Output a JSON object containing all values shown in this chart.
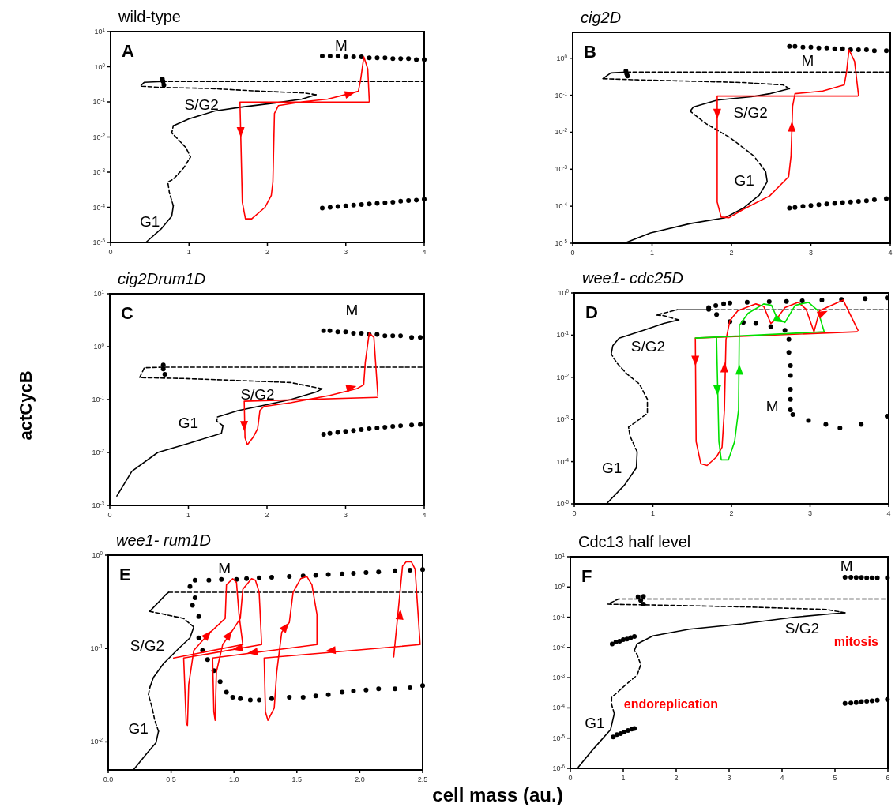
{
  "chart_data": [
    {
      "type": "line",
      "title": "wild-type",
      "log": true,
      "marker": "none",
      "xlim": [
        0,
        4
      ],
      "ylim": [
        1e-05,
        10
      ],
      "xticks": [
        0,
        1,
        2,
        3,
        4
      ],
      "yticks": [
        {
          "value": 1e-05,
          "label": "10$^{-5}$"
        },
        {
          "value": 0.0001,
          "label": "10$^{-4}$"
        },
        {
          "value": 0.001,
          "label": "10$^{-3}$"
        },
        {
          "value": 0.01,
          "label": "10$^{-2}$"
        },
        {
          "value": 0.1,
          "label": "10$^{-1}$"
        },
        {
          "value": 1,
          "label": "10$^{0}$"
        },
        {
          "value": 10,
          "label": "10$^{1}$"
        }
      ],
      "annotations": [
        "A",
        "G1",
        "S/G2",
        "M"
      ],
      "series": [
        {
          "line_style": "solid",
          "color": "#000000",
          "x": [
            0.45,
            0.65,
            0.78,
            0.8
          ],
          "values": [
            1e-05,
            2.5e-05,
            5.6e-05,
            0.00011
          ]
        },
        {
          "line_style": "dashed",
          "color": "#000000",
          "x": [
            0.8,
            0.75,
            0.73,
            0.8,
            0.93,
            1.02,
            0.96,
            0.85,
            0.78,
            0.8
          ],
          "values": [
            0.00011,
            0.00026,
            0.00052,
            0.00063,
            0.0013,
            0.0027,
            0.005,
            0.0091,
            0.013,
            0.021
          ]
        },
        {
          "line_style": "solid",
          "color": "#000000",
          "x": [
            0.8,
            1.0,
            1.33,
            1.67,
            2.1,
            2.44,
            2.62
          ],
          "values": [
            0.021,
            0.033,
            0.055,
            0.071,
            0.093,
            0.12,
            0.16
          ]
        },
        {
          "line_style": "dashed",
          "color": "#000000",
          "x": [
            2.62,
            2.47,
            1.94,
            1.27,
            0.6,
            0.38,
            0.43
          ],
          "values": [
            0.16,
            0.18,
            0.2,
            0.24,
            0.26,
            0.28,
            0.36
          ]
        },
        {
          "line_style": "solid",
          "color": "#000000",
          "x": [
            0.43,
            0.66
          ],
          "values": [
            0.36,
            0.38
          ]
        },
        {
          "line_style": "dashed",
          "color": "#000000",
          "x": [
            0.66,
            4
          ],
          "values": [
            0.38,
            0.38
          ]
        },
        {
          "type": "scatter",
          "marker": "circle",
          "color": "#000000",
          "x": [
            0.66,
            0.67,
            0.68,
            2.7,
            2.8,
            2.9,
            3.0,
            3.1,
            3.2,
            3.3,
            3.4,
            3.5,
            3.6,
            3.7,
            3.8,
            3.9,
            4.0
          ],
          "values": [
            0.45,
            0.38,
            0.3,
            2.0,
            2.0,
            2.0,
            1.9,
            1.9,
            1.9,
            1.8,
            1.8,
            1.8,
            1.7,
            1.7,
            1.7,
            1.6,
            1.6
          ]
        },
        {
          "type": "scatter",
          "marker": "circle",
          "color": "#000000",
          "x": [
            2.7,
            2.8,
            2.9,
            3.0,
            3.1,
            3.2,
            3.3,
            3.4,
            3.5,
            3.6,
            3.7,
            3.8,
            3.9,
            4.0
          ],
          "values": [
            9.5e-05,
            0.0001,
            0.000105,
            0.00011,
            0.000115,
            0.00012,
            0.000125,
            0.00013,
            0.000135,
            0.00014,
            0.00015,
            0.000155,
            0.00016,
            0.00017
          ]
        },
        {
          "line_style": "solid",
          "color": "#ff0000",
          "x": [
            3.29,
            1.65,
            1.68,
            1.72,
            1.8,
            1.97,
            2.05,
            2.07,
            2.09,
            2.14,
            2.44,
            2.77,
            3.08,
            3.16,
            3.19,
            3.23,
            3.28,
            3.3
          ],
          "values": [
            0.098,
            0.098,
            0.00014,
            4.7e-05,
            4.7e-05,
            0.0001,
            0.00022,
            0.00052,
            0.047,
            0.078,
            0.1,
            0.12,
            0.18,
            0.2,
            0.44,
            1.9,
            0.87,
            0.1
          ]
        },
        {
          "type": "scatter",
          "marker": "triangle",
          "color": "#ff0000",
          "x": [
            1.66,
            3.05
          ],
          "values": [
            0.014,
            0.17
          ]
        }
      ]
    },
    {
      "type": "line",
      "title": "cig2D",
      "log": true,
      "marker": "none",
      "xlim": [
        0,
        4
      ],
      "ylim": [
        1e-05,
        5
      ],
      "xticks": [
        0,
        1,
        2,
        3,
        4
      ],
      "yticks": [
        {
          "value": 1e-05,
          "label": "10$^{-5}$"
        },
        {
          "value": 0.0001,
          "label": "10$^{-4}$"
        },
        {
          "value": 0.001,
          "label": "10$^{-3}$"
        },
        {
          "value": 0.01,
          "label": "10$^{-2}$"
        },
        {
          "value": 0.1,
          "label": "10$^{-1}$"
        },
        {
          "value": 1,
          "label": "10$^{0}$"
        }
      ],
      "annotations": [
        "B",
        "M",
        "S/G2",
        "G1"
      ],
      "series": [
        {
          "line_style": "solid",
          "color": "#000000",
          "x": [
            0.65,
            0.98,
            1.48,
            1.92,
            2.15,
            2.35,
            2.45,
            2.43
          ],
          "values": [
            1e-05,
            1.9e-05,
            3.4e-05,
            4.9e-05,
            8.9e-05,
            0.0002,
            0.00046,
            0.00087
          ]
        },
        {
          "line_style": "dashed",
          "color": "#000000",
          "x": [
            2.43,
            2.28,
            1.98,
            1.68,
            1.48
          ],
          "values": [
            0.00087,
            0.0023,
            0.0072,
            0.017,
            0.037
          ]
        },
        {
          "line_style": "solid",
          "color": "#000000",
          "x": [
            1.48,
            1.52,
            1.82,
            2.25,
            2.48,
            2.73
          ],
          "values": [
            0.037,
            0.048,
            0.074,
            0.091,
            0.11,
            0.15
          ]
        },
        {
          "line_style": "dashed",
          "color": "#000000",
          "x": [
            2.73,
            2.65,
            2.15,
            1.48,
            0.82,
            0.38
          ],
          "values": [
            0.15,
            0.19,
            0.22,
            0.24,
            0.26,
            0.28
          ]
        },
        {
          "line_style": "solid",
          "color": "#000000",
          "x": [
            0.38,
            0.48,
            0.68
          ],
          "values": [
            0.28,
            0.4,
            0.42
          ]
        },
        {
          "line_style": "dashed",
          "color": "#000000",
          "x": [
            0.68,
            4
          ],
          "values": [
            0.42,
            0.42
          ]
        },
        {
          "type": "scatter",
          "marker": "circle",
          "color": "#000000",
          "x": [
            0.67,
            0.68,
            0.69,
            2.73,
            2.8,
            2.9,
            3.0,
            3.1,
            3.2,
            3.3,
            3.4,
            3.5,
            3.6,
            3.7,
            3.8,
            3.95
          ],
          "values": [
            0.45,
            0.38,
            0.33,
            2.1,
            2.1,
            2.0,
            2.0,
            1.9,
            1.9,
            1.8,
            1.8,
            1.7,
            1.7,
            1.7,
            1.6,
            1.6
          ]
        },
        {
          "type": "scatter",
          "marker": "circle",
          "color": "#000000",
          "x": [
            2.73,
            2.8,
            2.9,
            3.0,
            3.1,
            3.2,
            3.3,
            3.4,
            3.5,
            3.6,
            3.7,
            3.8,
            3.95
          ],
          "values": [
            8.9e-05,
            9.3e-05,
            0.0001,
            0.000105,
            0.00011,
            0.000115,
            0.00012,
            0.000125,
            0.00013,
            0.000135,
            0.00014,
            0.00015,
            0.00016
          ]
        },
        {
          "line_style": "solid",
          "color": "#ff0000",
          "x": [
            3.59,
            1.82,
            1.82,
            1.87,
            1.97,
            2.15,
            2.48,
            2.72,
            2.75,
            2.77,
            2.8,
            3.15,
            3.42,
            3.45,
            3.48,
            3.55,
            3.6
          ],
          "values": [
            0.095,
            0.095,
            0.00013,
            5.1e-05,
            4.9e-05,
            8.3e-05,
            0.00019,
            0.00063,
            0.0023,
            0.051,
            0.11,
            0.13,
            0.19,
            0.43,
            1.7,
            0.83,
            0.1
          ]
        },
        {
          "type": "scatter",
          "marker": "triangle",
          "color": "#ff0000",
          "x": [
            1.82,
            2.76
          ],
          "values": [
            0.032,
            0.014
          ]
        }
      ]
    },
    {
      "type": "line",
      "title": "cig2Drum1D",
      "ylabel": "actCycB",
      "log": true,
      "marker": "none",
      "xlim": [
        0,
        4
      ],
      "ylim": [
        0.001,
        10
      ],
      "xticks": [
        0,
        1,
        2,
        3,
        4
      ],
      "yticks": [
        {
          "value": 0.001,
          "label": "10$^{-3}$"
        },
        {
          "value": 0.01,
          "label": "10$^{-2}$"
        },
        {
          "value": 0.1,
          "label": "10$^{-1}$"
        },
        {
          "value": 1,
          "label": "10$^{0}$"
        },
        {
          "value": 10,
          "label": "10$^{1}$"
        }
      ],
      "annotations": [
        "C",
        "M",
        "S/G2",
        "G1"
      ],
      "series": [
        {
          "line_style": "solid",
          "color": "#000000",
          "x": [
            0.09,
            0.28,
            0.61,
            1.01,
            1.42,
            1.44
          ],
          "values": [
            0.0015,
            0.0044,
            0.01,
            0.015,
            0.023,
            0.032
          ]
        },
        {
          "line_style": "dashed",
          "color": "#000000",
          "x": [
            1.44,
            1.36,
            1.37
          ],
          "values": [
            0.032,
            0.039,
            0.047
          ]
        },
        {
          "line_style": "solid",
          "color": "#000000",
          "x": [
            1.37,
            1.63,
            1.96,
            2.3,
            2.63,
            2.7
          ],
          "values": [
            0.047,
            0.062,
            0.078,
            0.1,
            0.14,
            0.16
          ]
        },
        {
          "line_style": "dashed",
          "color": "#000000",
          "x": [
            2.7,
            2.3,
            1.62,
            0.95,
            0.38,
            0.44,
            0.68,
            4
          ],
          "values": [
            0.16,
            0.21,
            0.23,
            0.25,
            0.26,
            0.4,
            0.41,
            0.41
          ]
        },
        {
          "type": "scatter",
          "marker": "circle",
          "color": "#000000",
          "x": [
            0.68,
            0.68,
            0.7,
            2.72,
            2.8,
            2.9,
            3.0,
            3.1,
            3.2,
            3.3,
            3.4,
            3.5,
            3.6,
            3.7,
            3.84,
            3.95
          ],
          "values": [
            0.45,
            0.38,
            0.3,
            2.0,
            2.0,
            1.9,
            1.9,
            1.8,
            1.8,
            1.7,
            1.7,
            1.6,
            1.6,
            1.6,
            1.5,
            1.5
          ]
        },
        {
          "type": "scatter",
          "marker": "circle",
          "color": "#000000",
          "x": [
            2.72,
            2.8,
            2.9,
            3.0,
            3.1,
            3.2,
            3.3,
            3.4,
            3.5,
            3.6,
            3.7,
            3.84,
            3.95
          ],
          "values": [
            0.022,
            0.023,
            0.024,
            0.025,
            0.026,
            0.027,
            0.028,
            0.029,
            0.03,
            0.031,
            0.032,
            0.033,
            0.034
          ]
        },
        {
          "line_style": "solid",
          "color": "#ff0000",
          "x": [
            3.4,
            1.71,
            1.72,
            1.75,
            1.82,
            1.88,
            1.91,
            1.96,
            2.3,
            2.8,
            3.14,
            3.23,
            3.25,
            3.3,
            3.36,
            3.41
          ],
          "values": [
            0.11,
            0.093,
            0.019,
            0.014,
            0.019,
            0.028,
            0.062,
            0.074,
            0.087,
            0.12,
            0.16,
            0.19,
            0.5,
            1.8,
            1.5,
            0.12
          ]
        },
        {
          "type": "scatter",
          "marker": "triangle",
          "color": "#ff0000",
          "x": [
            1.71,
            3.07
          ],
          "values": [
            0.032,
            0.17
          ]
        }
      ]
    },
    {
      "type": "line",
      "title": "wee1- cdc25D",
      "log": true,
      "marker": "none",
      "xlim": [
        0,
        4
      ],
      "ylim": [
        1e-05,
        1
      ],
      "xticks": [
        0,
        1,
        2,
        3,
        4
      ],
      "yticks": [
        {
          "value": 1e-05,
          "label": "10$^{-5}$"
        },
        {
          "value": 0.0001,
          "label": "10$^{-4}$"
        },
        {
          "value": 0.001,
          "label": "10$^{-3}$"
        },
        {
          "value": 0.01,
          "label": "10$^{-2}$"
        },
        {
          "value": 0.1,
          "label": "10$^{-1}$"
        },
        {
          "value": 1,
          "label": "10$^{0}$"
        }
      ],
      "annotations": [
        "D",
        "S/G2",
        "M",
        "G1"
      ],
      "series": [
        {
          "line_style": "solid",
          "color": "#000000",
          "x": [
            0.41,
            0.64,
            0.79,
            0.8
          ],
          "values": [
            1e-05,
            2.8e-05,
            7.2e-05,
            0.00017
          ]
        },
        {
          "line_style": "dashed",
          "color": "#000000",
          "x": [
            0.8,
            0.71,
            0.69,
            0.81,
            0.93,
            0.93,
            0.83,
            0.67,
            0.54,
            0.47
          ],
          "values": [
            0.00017,
            0.0004,
            0.00066,
            0.00095,
            0.0014,
            0.003,
            0.0069,
            0.012,
            0.022,
            0.036
          ]
        },
        {
          "line_style": "solid",
          "color": "#000000",
          "x": [
            0.47,
            0.49,
            0.57,
            0.88,
            1.14,
            1.33
          ],
          "values": [
            0.036,
            0.056,
            0.085,
            0.13,
            0.19,
            0.23
          ]
        },
        {
          "line_style": "dashed",
          "color": "#000000",
          "x": [
            1.33,
            1.14,
            1.04,
            1.31
          ],
          "values": [
            0.23,
            0.29,
            0.3,
            0.4
          ]
        },
        {
          "line_style": "solid",
          "color": "#000000",
          "x": [
            1.31,
            1.71
          ],
          "values": [
            0.4,
            0.4
          ]
        },
        {
          "line_style": "dashed",
          "color": "#000000",
          "x": [
            1.71,
            4
          ],
          "values": [
            0.4,
            0.4
          ]
        },
        {
          "type": "scatter",
          "marker": "circle",
          "color": "#000000",
          "x": [
            1.71,
            1.8,
            1.9,
            1.98,
            2.2,
            2.48,
            2.7,
            2.9,
            3.15,
            3.4,
            3.7,
            3.98
          ],
          "values": [
            0.45,
            0.5,
            0.55,
            0.58,
            0.6,
            0.62,
            0.63,
            0.65,
            0.68,
            0.7,
            0.73,
            0.76
          ]
        },
        {
          "type": "scatter",
          "marker": "circle",
          "color": "#000000",
          "x": [
            1.71,
            1.81,
            1.98,
            2.15,
            2.31,
            2.5,
            2.68,
            2.73,
            2.73,
            2.75,
            2.75,
            2.75,
            2.75,
            2.75,
            2.78,
            2.98,
            3.2,
            3.38,
            3.65,
            3.98
          ],
          "values": [
            0.41,
            0.31,
            0.21,
            0.2,
            0.19,
            0.16,
            0.13,
            0.079,
            0.039,
            0.019,
            0.011,
            0.0052,
            0.003,
            0.0017,
            0.0013,
            0.00095,
            0.00076,
            0.00063,
            0.00076,
            0.0012
          ]
        },
        {
          "line_style": "solid",
          "color": "#ff0000",
          "x": [
            3.6,
            1.54,
            1.55,
            1.61,
            1.69,
            1.81,
            1.88,
            1.91,
            1.93,
            1.98,
            2.08,
            2.31,
            2.41,
            2.5,
            2.58,
            2.68,
            2.85,
            2.95,
            3.05,
            3.12,
            3.42,
            3.61
          ],
          "values": [
            0.12,
            0.085,
            0.0003,
            8.9e-05,
            8.1e-05,
            0.00013,
            0.00022,
            0.0017,
            0.079,
            0.22,
            0.38,
            0.55,
            0.48,
            0.19,
            0.25,
            0.45,
            0.6,
            0.41,
            0.12,
            0.38,
            0.68,
            0.13
          ]
        },
        {
          "line_style": "solid",
          "color": "#00e000",
          "x": [
            1.81,
            1.84,
            1.87,
            1.96,
            2.04,
            2.09,
            2.1,
            2.21,
            2.41,
            2.51,
            2.58,
            2.68,
            2.81,
            2.98,
            3.1,
            3.18,
            1.54
          ],
          "values": [
            0.085,
            0.0003,
            0.00011,
            0.00011,
            0.0003,
            0.0017,
            0.17,
            0.33,
            0.55,
            0.51,
            0.25,
            0.2,
            0.51,
            0.6,
            0.38,
            0.12,
            0.085
          ]
        },
        {
          "type": "scatter",
          "marker": "triangle",
          "color": "#ff0000",
          "x": [
            1.54,
            1.91,
            3.16
          ],
          "values": [
            0.025,
            0.017,
            0.33
          ]
        },
        {
          "type": "scatter",
          "marker": "triangle",
          "color": "#00e000",
          "x": [
            1.82,
            2.1,
            2.6
          ],
          "values": [
            0.005,
            0.015,
            0.23
          ]
        }
      ]
    },
    {
      "type": "line",
      "title": "wee1- rum1D",
      "xlabel": "cell mass (au.)",
      "log": true,
      "marker": "none",
      "xlim": [
        0,
        2.5
      ],
      "ylim": [
        0.005,
        1
      ],
      "xticks": [
        {
          "value": 0,
          "label": "0.0"
        },
        {
          "value": 0.5,
          "label": "0.5"
        },
        {
          "value": 1,
          "label": "1.0"
        },
        {
          "value": 1.5,
          "label": "1.5"
        },
        {
          "value": 2,
          "label": "2.0"
        },
        {
          "value": 2.5,
          "label": "2.5"
        }
      ],
      "yticks": [
        {
          "value": 0.01,
          "label": "10$^{-2}$"
        },
        {
          "value": 0.1,
          "label": "10$^{-1}$"
        },
        {
          "value": 1,
          "label": "10$^{0}$"
        }
      ],
      "annotations": [
        "E",
        "M",
        "S/G2",
        "G1"
      ],
      "series": [
        {
          "line_style": "solid",
          "color": "#000000",
          "x": [
            0.205,
            0.31,
            0.38,
            0.4
          ],
          "values": [
            0.0051,
            0.0076,
            0.0098,
            0.013
          ]
        },
        {
          "line_style": "dashed",
          "color": "#000000",
          "x": [
            0.4,
            0.37,
            0.35,
            0.32,
            0.33
          ],
          "values": [
            0.013,
            0.017,
            0.023,
            0.032,
            0.038
          ]
        },
        {
          "line_style": "solid",
          "color": "#000000",
          "x": [
            0.33,
            0.36,
            0.44,
            0.56,
            0.65,
            0.68
          ],
          "values": [
            0.038,
            0.049,
            0.069,
            0.1,
            0.13,
            0.17
          ]
        },
        {
          "line_style": "dashed",
          "color": "#000000",
          "x": [
            0.68,
            0.6,
            0.46,
            0.33
          ],
          "values": [
            0.17,
            0.21,
            0.23,
            0.25
          ]
        },
        {
          "line_style": "solid",
          "color": "#000000",
          "x": [
            0.33,
            0.46,
            0.48
          ],
          "values": [
            0.25,
            0.38,
            0.4
          ]
        },
        {
          "line_style": "dashed",
          "color": "#000000",
          "x": [
            0.48,
            2.5
          ],
          "values": [
            0.4,
            0.4
          ]
        },
        {
          "type": "scatter",
          "marker": "circle",
          "color": "#000000",
          "x": [
            0.69,
            0.8,
            0.9,
            1.02,
            1.1,
            1.2,
            1.3,
            1.44,
            1.55,
            1.65,
            1.75,
            1.86,
            1.95,
            2.05,
            2.15,
            2.28,
            2.4,
            2.5
          ],
          "values": [
            0.54,
            0.54,
            0.55,
            0.55,
            0.56,
            0.57,
            0.58,
            0.59,
            0.6,
            0.61,
            0.62,
            0.63,
            0.64,
            0.65,
            0.66,
            0.68,
            0.69,
            0.7
          ]
        },
        {
          "type": "scatter",
          "marker": "circle",
          "color": "#000000",
          "x": [
            0.65,
            0.69,
            0.67,
            0.72,
            0.72,
            0.75,
            0.79,
            0.84,
            0.89,
            0.94,
            0.99,
            1.05,
            1.13,
            1.2,
            1.3,
            1.44,
            1.55,
            1.65,
            1.75,
            1.86,
            1.95,
            2.05,
            2.15,
            2.28,
            2.4,
            2.5
          ],
          "values": [
            0.46,
            0.35,
            0.29,
            0.22,
            0.13,
            0.095,
            0.076,
            0.058,
            0.044,
            0.034,
            0.03,
            0.029,
            0.028,
            0.028,
            0.029,
            0.03,
            0.03,
            0.031,
            0.032,
            0.034,
            0.035,
            0.036,
            0.037,
            0.037,
            0.038,
            0.04
          ]
        },
        {
          "line_style": "solid",
          "color": "#ff0000",
          "x": [
            2.27,
            2.3,
            2.32,
            2.34,
            2.37,
            2.41,
            2.44,
            2.48,
            1.24,
            1.25,
            1.27,
            1.32,
            1.34,
            1.38,
            1.44,
            1.47,
            1.53,
            1.58,
            1.62,
            1.66,
            1.66,
            0.83,
            0.84,
            0.85,
            0.86,
            0.91,
            0.98,
            1.05,
            1.07,
            1.14,
            1.17,
            1.2,
            1.22,
            0.6,
            0.62,
            0.63,
            0.64,
            0.68,
            0.79,
            0.93,
            0.94,
            0.99,
            1.02,
            1.04,
            1.07,
            0.52
          ],
          "values": [
            0.081,
            0.21,
            0.4,
            0.76,
            0.85,
            0.85,
            0.71,
            0.11,
            0.079,
            0.021,
            0.017,
            0.023,
            0.056,
            0.15,
            0.19,
            0.4,
            0.56,
            0.59,
            0.48,
            0.23,
            0.11,
            0.079,
            0.021,
            0.017,
            0.056,
            0.11,
            0.15,
            0.21,
            0.43,
            0.56,
            0.54,
            0.4,
            0.11,
            0.079,
            0.016,
            0.015,
            0.041,
            0.095,
            0.14,
            0.21,
            0.48,
            0.56,
            0.51,
            0.23,
            0.11,
            0.079
          ]
        },
        {
          "type": "scatter",
          "marker": "triangle",
          "color": "#ff0000",
          "x": [
            0.79,
            0.96,
            1.03,
            1.15,
            1.41,
            1.77,
            2.32
          ],
          "values": [
            0.14,
            0.14,
            0.1,
            0.091,
            0.17,
            0.095,
            0.23
          ]
        }
      ]
    },
    {
      "type": "line",
      "title": "Cdc13 half level",
      "log": true,
      "marker": "none",
      "xlim": [
        0,
        6
      ],
      "ylim": [
        1e-06,
        10
      ],
      "xticks": [
        0,
        1,
        2,
        3,
        4,
        5,
        6
      ],
      "yticks": [
        {
          "value": 1e-06,
          "label": "10$^{-6}$"
        },
        {
          "value": 1e-05,
          "label": "10$^{-5}$"
        },
        {
          "value": 0.0001,
          "label": "10$^{-4}$"
        },
        {
          "value": 0.001,
          "label": "10$^{-3}$"
        },
        {
          "value": 0.01,
          "label": "10$^{-2}$"
        },
        {
          "value": 0.1,
          "label": "10$^{-1}$"
        },
        {
          "value": 1,
          "label": "10$^{0}$"
        },
        {
          "value": 10,
          "label": "10$^{1}$"
        }
      ],
      "annotations": [
        "F",
        "M",
        "S/G2",
        "G1",
        "endoreplication",
        "mitosis"
      ],
      "series": [
        {
          "line_style": "solid",
          "color": "#000000",
          "x": [
            0.15,
            0.41,
            0.76,
            0.83
          ],
          "values": [
            1.1e-06,
            3.9e-06,
            1.9e-05,
            6.5e-05
          ]
        },
        {
          "line_style": "dashed",
          "color": "#000000",
          "x": [
            0.83,
            0.78,
            0.78,
            1.05,
            1.26,
            1.33,
            1.26,
            1.21
          ],
          "values": [
            6.5e-05,
            0.00013,
            0.00022,
            0.00059,
            0.0012,
            0.0027,
            0.0059,
            0.0079
          ]
        },
        {
          "line_style": "solid",
          "color": "#000000",
          "x": [
            1.21,
            1.26,
            1.56,
            2.25,
            3.25,
            4.24,
            4.94,
            5.19
          ],
          "values": [
            0.0079,
            0.013,
            0.024,
            0.04,
            0.06,
            0.1,
            0.13,
            0.14
          ]
        },
        {
          "line_style": "dashed",
          "color": "#000000",
          "x": [
            5.19,
            4.84,
            3.25,
            1.76,
            0.71,
            0.91,
            6
          ],
          "values": [
            0.14,
            0.18,
            0.22,
            0.25,
            0.27,
            0.4,
            0.4
          ]
        },
        {
          "type": "scatter",
          "marker": "circle",
          "color": "#000000",
          "x": [
            1.28,
            1.38,
            1.33,
            1.38,
            0.79,
            0.86,
            0.93,
            1.0,
            1.07,
            1.14,
            1.21,
            5.19,
            5.3,
            5.4,
            5.5,
            5.6,
            5.7,
            5.8,
            5.99
          ],
          "values": [
            0.47,
            0.49,
            0.36,
            0.27,
            0.013,
            0.015,
            0.016,
            0.018,
            0.019,
            0.021,
            0.023,
            2.1,
            2.1,
            2.05,
            2.05,
            2.0,
            2.0,
            2.0,
            2.0
          ]
        },
        {
          "type": "scatter",
          "marker": "circle",
          "color": "#000000",
          "x": [
            0.81,
            0.88,
            0.95,
            1.02,
            1.09,
            1.16,
            1.21,
            5.19,
            5.3,
            5.4,
            5.5,
            5.6,
            5.7,
            5.8,
            5.99
          ],
          "values": [
            1.1e-05,
            1.3e-05,
            1.4e-05,
            1.6e-05,
            1.8e-05,
            2e-05,
            2.1e-05,
            0.00014,
            0.000145,
            0.00015,
            0.00016,
            0.000165,
            0.00017,
            0.00018,
            0.00019
          ]
        }
      ]
    }
  ]
}
